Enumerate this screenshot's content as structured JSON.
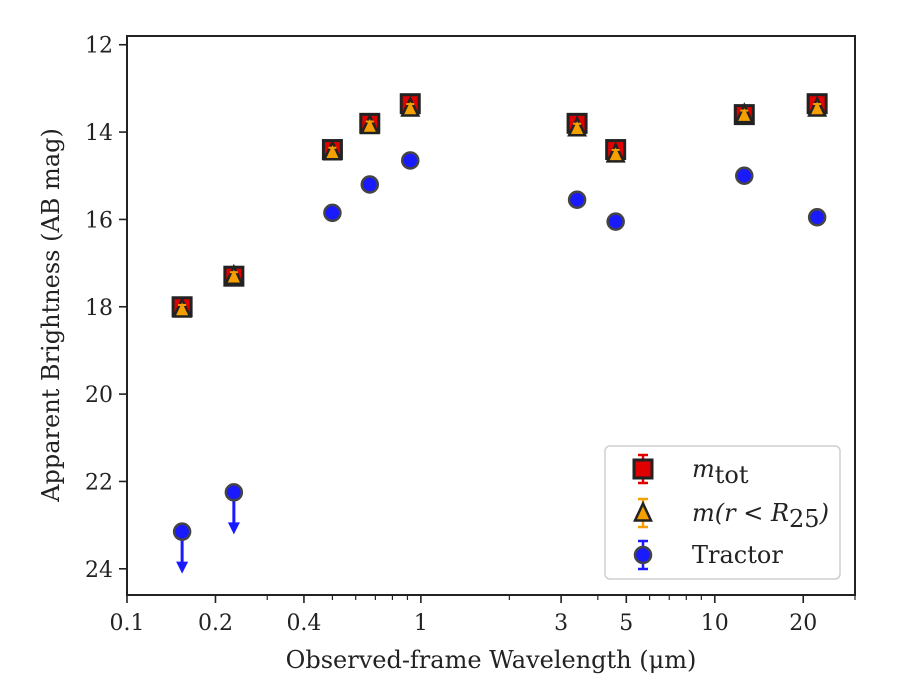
{
  "chart_data": {
    "type": "scatter",
    "xlabel": "Observed-frame Wavelength (μm)",
    "ylabel": "Apparent Brightness (AB mag)",
    "x_scale": "log",
    "y_inverted": true,
    "xlim": [
      0.1,
      30
    ],
    "ylim": [
      24.6,
      11.8
    ],
    "x_ticks": [
      {
        "value": 0.1,
        "label": "0.1"
      },
      {
        "value": 0.2,
        "label": "0.2"
      },
      {
        "value": 0.4,
        "label": "0.4"
      },
      {
        "value": 1,
        "label": "1"
      },
      {
        "value": 3,
        "label": "3"
      },
      {
        "value": 5,
        "label": "5"
      },
      {
        "value": 10,
        "label": "10"
      },
      {
        "value": 20,
        "label": "20"
      }
    ],
    "y_ticks": [
      {
        "value": 12,
        "label": "12"
      },
      {
        "value": 14,
        "label": "14"
      },
      {
        "value": 16,
        "label": "16"
      },
      {
        "value": 18,
        "label": "18"
      },
      {
        "value": 20,
        "label": "20"
      },
      {
        "value": 22,
        "label": "22"
      },
      {
        "value": 24,
        "label": "24"
      }
    ],
    "grid": false,
    "legend_position": "lower-right",
    "series": [
      {
        "name": "m_tot",
        "marker": "square",
        "color": "#e00000",
        "edge_color": "#222222",
        "error_color": "#e00000",
        "points": [
          {
            "x": 0.154,
            "y": 18.0
          },
          {
            "x": 0.231,
            "y": 17.3
          },
          {
            "x": 0.5,
            "y": 14.4
          },
          {
            "x": 0.67,
            "y": 13.8
          },
          {
            "x": 0.92,
            "y": 13.35
          },
          {
            "x": 3.4,
            "y": 13.8
          },
          {
            "x": 4.6,
            "y": 14.4
          },
          {
            "x": 12.6,
            "y": 13.6
          },
          {
            "x": 22.3,
            "y": 13.35
          }
        ]
      },
      {
        "name": "m(r < R25)",
        "marker": "triangle",
        "color": "#f5a000",
        "edge_color": "#222222",
        "error_color": "#f5a000",
        "points": [
          {
            "x": 0.154,
            "y": 18.05
          },
          {
            "x": 0.231,
            "y": 17.3
          },
          {
            "x": 0.5,
            "y": 14.45
          },
          {
            "x": 0.67,
            "y": 13.85
          },
          {
            "x": 0.92,
            "y": 13.45
          },
          {
            "x": 3.4,
            "y": 13.9
          },
          {
            "x": 4.6,
            "y": 14.5
          },
          {
            "x": 12.6,
            "y": 13.6
          },
          {
            "x": 22.3,
            "y": 13.45
          }
        ]
      },
      {
        "name": "Tractor",
        "marker": "circle",
        "color": "#1a1aff",
        "edge_color": "#444444",
        "error_color": "#1a1aff",
        "points": [
          {
            "x": 0.154,
            "y": 23.15,
            "upper_limit": true
          },
          {
            "x": 0.231,
            "y": 22.25,
            "upper_limit": true
          },
          {
            "x": 0.5,
            "y": 15.85
          },
          {
            "x": 0.67,
            "y": 15.2
          },
          {
            "x": 0.92,
            "y": 14.65
          },
          {
            "x": 3.4,
            "y": 15.55
          },
          {
            "x": 4.6,
            "y": 16.05
          },
          {
            "x": 12.6,
            "y": 15.0
          },
          {
            "x": 22.3,
            "y": 15.95
          }
        ]
      }
    ],
    "legend": [
      {
        "series": 0,
        "label": "m",
        "sub": "tot",
        "text": ""
      },
      {
        "series": 1,
        "label": "m(r < R",
        "sub": "25",
        "text": ")"
      },
      {
        "series": 2,
        "label": "",
        "sub": "",
        "text": "Tractor"
      }
    ]
  }
}
